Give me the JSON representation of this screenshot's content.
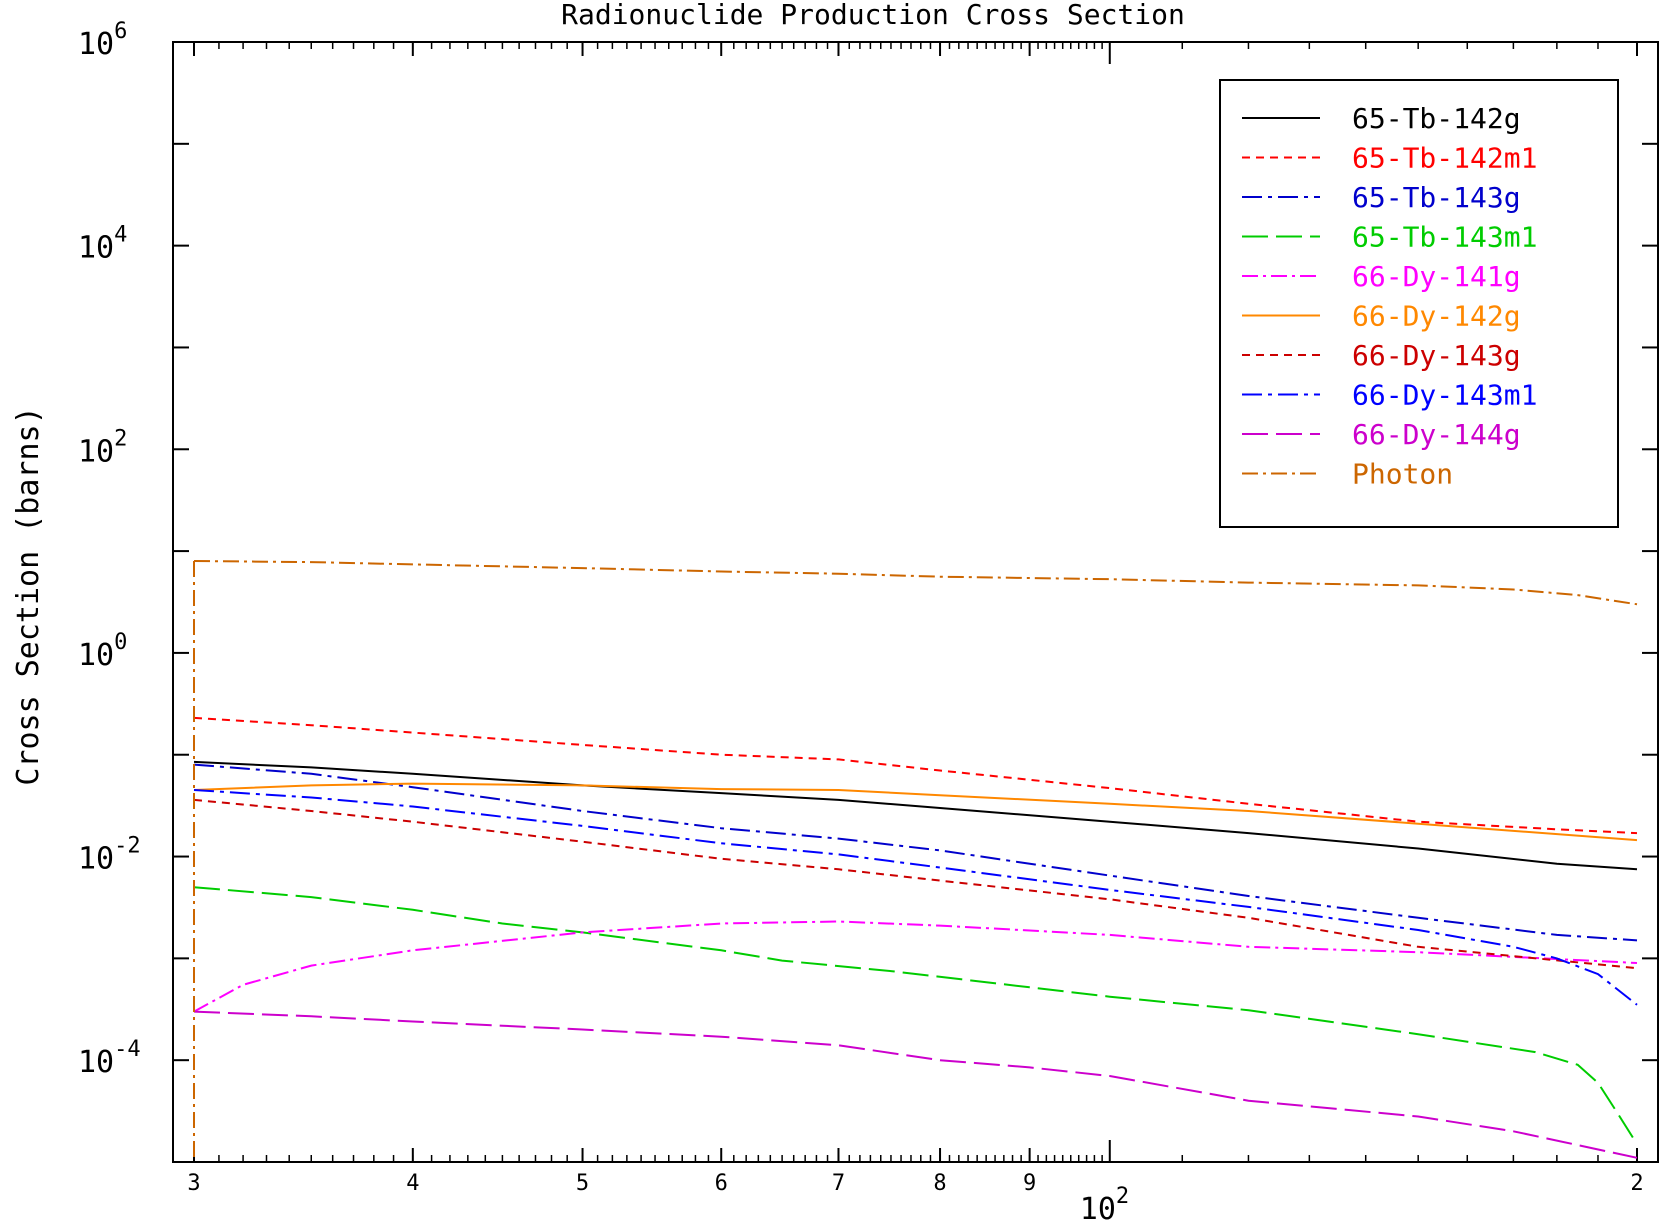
{
  "chart_data": {
    "type": "line",
    "title": "Radionuclide Production Cross Section",
    "xlabel": "",
    "ylabel": "Cross Section (barns)",
    "x_scale": "log",
    "y_scale": "log",
    "xlim": [
      30,
      200
    ],
    "ylim": [
      1e-05,
      1000000.0
    ],
    "grid": false,
    "legend_position": "top-right",
    "x_ticks": [
      {
        "value": 30,
        "label": "3",
        "major": true
      },
      {
        "value": 40,
        "label": "4",
        "major": true
      },
      {
        "value": 50,
        "label": "5",
        "major": true
      },
      {
        "value": 60,
        "label": "6",
        "major": true
      },
      {
        "value": 70,
        "label": "7",
        "major": true
      },
      {
        "value": 80,
        "label": "8",
        "major": true
      },
      {
        "value": 90,
        "label": "9",
        "major": true
      },
      {
        "value": 100,
        "label": "",
        "major": true
      },
      {
        "value": 200,
        "label": "2",
        "major": true
      }
    ],
    "x_decade_label": {
      "base": "10",
      "exp": "2",
      "value": 100
    },
    "y_ticks": [
      {
        "value": 1000000.0,
        "base": "10",
        "exp": "6"
      },
      {
        "value": 10000.0,
        "base": "10",
        "exp": "4"
      },
      {
        "value": 100.0,
        "base": "10",
        "exp": "2"
      },
      {
        "value": 1,
        "base": "10",
        "exp": "0"
      },
      {
        "value": 0.01,
        "base": "10",
        "exp": "-2"
      },
      {
        "value": 0.0001,
        "base": "10",
        "exp": "-4"
      }
    ],
    "series": [
      {
        "name": "65-Tb-142g",
        "color": "#000000",
        "dash": "",
        "x": [
          30,
          35,
          40,
          50,
          60,
          70,
          80,
          100,
          120,
          150,
          180,
          200
        ],
        "y": [
          0.085,
          0.075,
          0.065,
          0.05,
          0.042,
          0.036,
          0.03,
          0.022,
          0.017,
          0.012,
          0.0085,
          0.0075
        ]
      },
      {
        "name": "65-Tb-142m1",
        "color": "#ff0000",
        "dash": "8,6",
        "x": [
          30,
          35,
          40,
          50,
          60,
          70,
          80,
          100,
          120,
          150,
          180,
          200
        ],
        "y": [
          0.23,
          0.195,
          0.165,
          0.125,
          0.1,
          0.09,
          0.07,
          0.047,
          0.033,
          0.022,
          0.0185,
          0.017
        ]
      },
      {
        "name": "65-Tb-143g",
        "color": "#0000cc",
        "dash": "20,6,4,6",
        "x": [
          30,
          35,
          40,
          50,
          60,
          70,
          80,
          100,
          120,
          150,
          180,
          200
        ],
        "y": [
          0.08,
          0.065,
          0.048,
          0.028,
          0.019,
          0.015,
          0.0115,
          0.0065,
          0.0041,
          0.0025,
          0.0017,
          0.0015
        ]
      },
      {
        "name": "65-Tb-143m1",
        "color": "#00cc00",
        "dash": "26,8",
        "x": [
          30,
          35,
          40,
          45,
          50,
          60,
          65,
          75,
          90,
          100,
          120,
          150,
          175,
          185,
          190,
          195,
          200
        ],
        "y": [
          0.005,
          0.004,
          0.003,
          0.0022,
          0.0018,
          0.0012,
          0.00095,
          0.00075,
          0.00052,
          0.00042,
          0.00031,
          0.00018,
          0.00012,
          9e-05,
          6e-05,
          3e-05,
          1.5e-05
        ]
      },
      {
        "name": "66-Dy-141g",
        "color": "#ff00ff",
        "dash": "16,5,3,5",
        "x": [
          30,
          32,
          35,
          40,
          50,
          60,
          70,
          80,
          100,
          120,
          150,
          200
        ],
        "y": [
          0.0003,
          0.00055,
          0.00085,
          0.0012,
          0.0018,
          0.0022,
          0.0023,
          0.0021,
          0.0017,
          0.0013,
          0.00115,
          0.0009
        ]
      },
      {
        "name": "66-Dy-142g",
        "color": "#ff8800",
        "dash": "",
        "x": [
          30,
          35,
          40,
          50,
          60,
          70,
          80,
          100,
          120,
          150,
          200
        ],
        "y": [
          0.045,
          0.05,
          0.052,
          0.05,
          0.046,
          0.045,
          0.04,
          0.033,
          0.028,
          0.021,
          0.0145
        ]
      },
      {
        "name": "66-Dy-143g",
        "color": "#cc0000",
        "dash": "8,6",
        "x": [
          30,
          35,
          40,
          50,
          60,
          70,
          80,
          100,
          120,
          150,
          200
        ],
        "y": [
          0.036,
          0.028,
          0.022,
          0.014,
          0.0095,
          0.0075,
          0.0058,
          0.0038,
          0.0025,
          0.0013,
          0.0008
        ]
      },
      {
        "name": "66-Dy-143m1",
        "color": "#0000ff",
        "dash": "20,6,4,6",
        "x": [
          30,
          35,
          40,
          50,
          60,
          70,
          80,
          100,
          120,
          150,
          170,
          180,
          190,
          200
        ],
        "y": [
          0.045,
          0.038,
          0.031,
          0.02,
          0.0135,
          0.0105,
          0.0078,
          0.0047,
          0.0032,
          0.0019,
          0.0013,
          0.001,
          0.0007,
          0.00035
        ]
      },
      {
        "name": "66-Dy-144g",
        "color": "#cc00cc",
        "dash": "26,8",
        "x": [
          30,
          35,
          40,
          50,
          60,
          70,
          80,
          90,
          100,
          120,
          150,
          170,
          200
        ],
        "y": [
          0.0003,
          0.00027,
          0.00024,
          0.0002,
          0.00017,
          0.00014,
          0.0001,
          8.5e-05,
          7e-05,
          4e-05,
          2.8e-05,
          2e-05,
          1.1e-05
        ]
      },
      {
        "name": "Photon",
        "color": "#cc6600",
        "dash": "16,5,3,5",
        "x": [
          30,
          35,
          40,
          50,
          60,
          70,
          80,
          100,
          120,
          150,
          170,
          185,
          200
        ],
        "y": [
          8.0,
          7.8,
          7.4,
          6.8,
          6.3,
          6.0,
          5.6,
          5.3,
          4.9,
          4.6,
          4.2,
          3.7,
          3.0
        ]
      }
    ]
  }
}
